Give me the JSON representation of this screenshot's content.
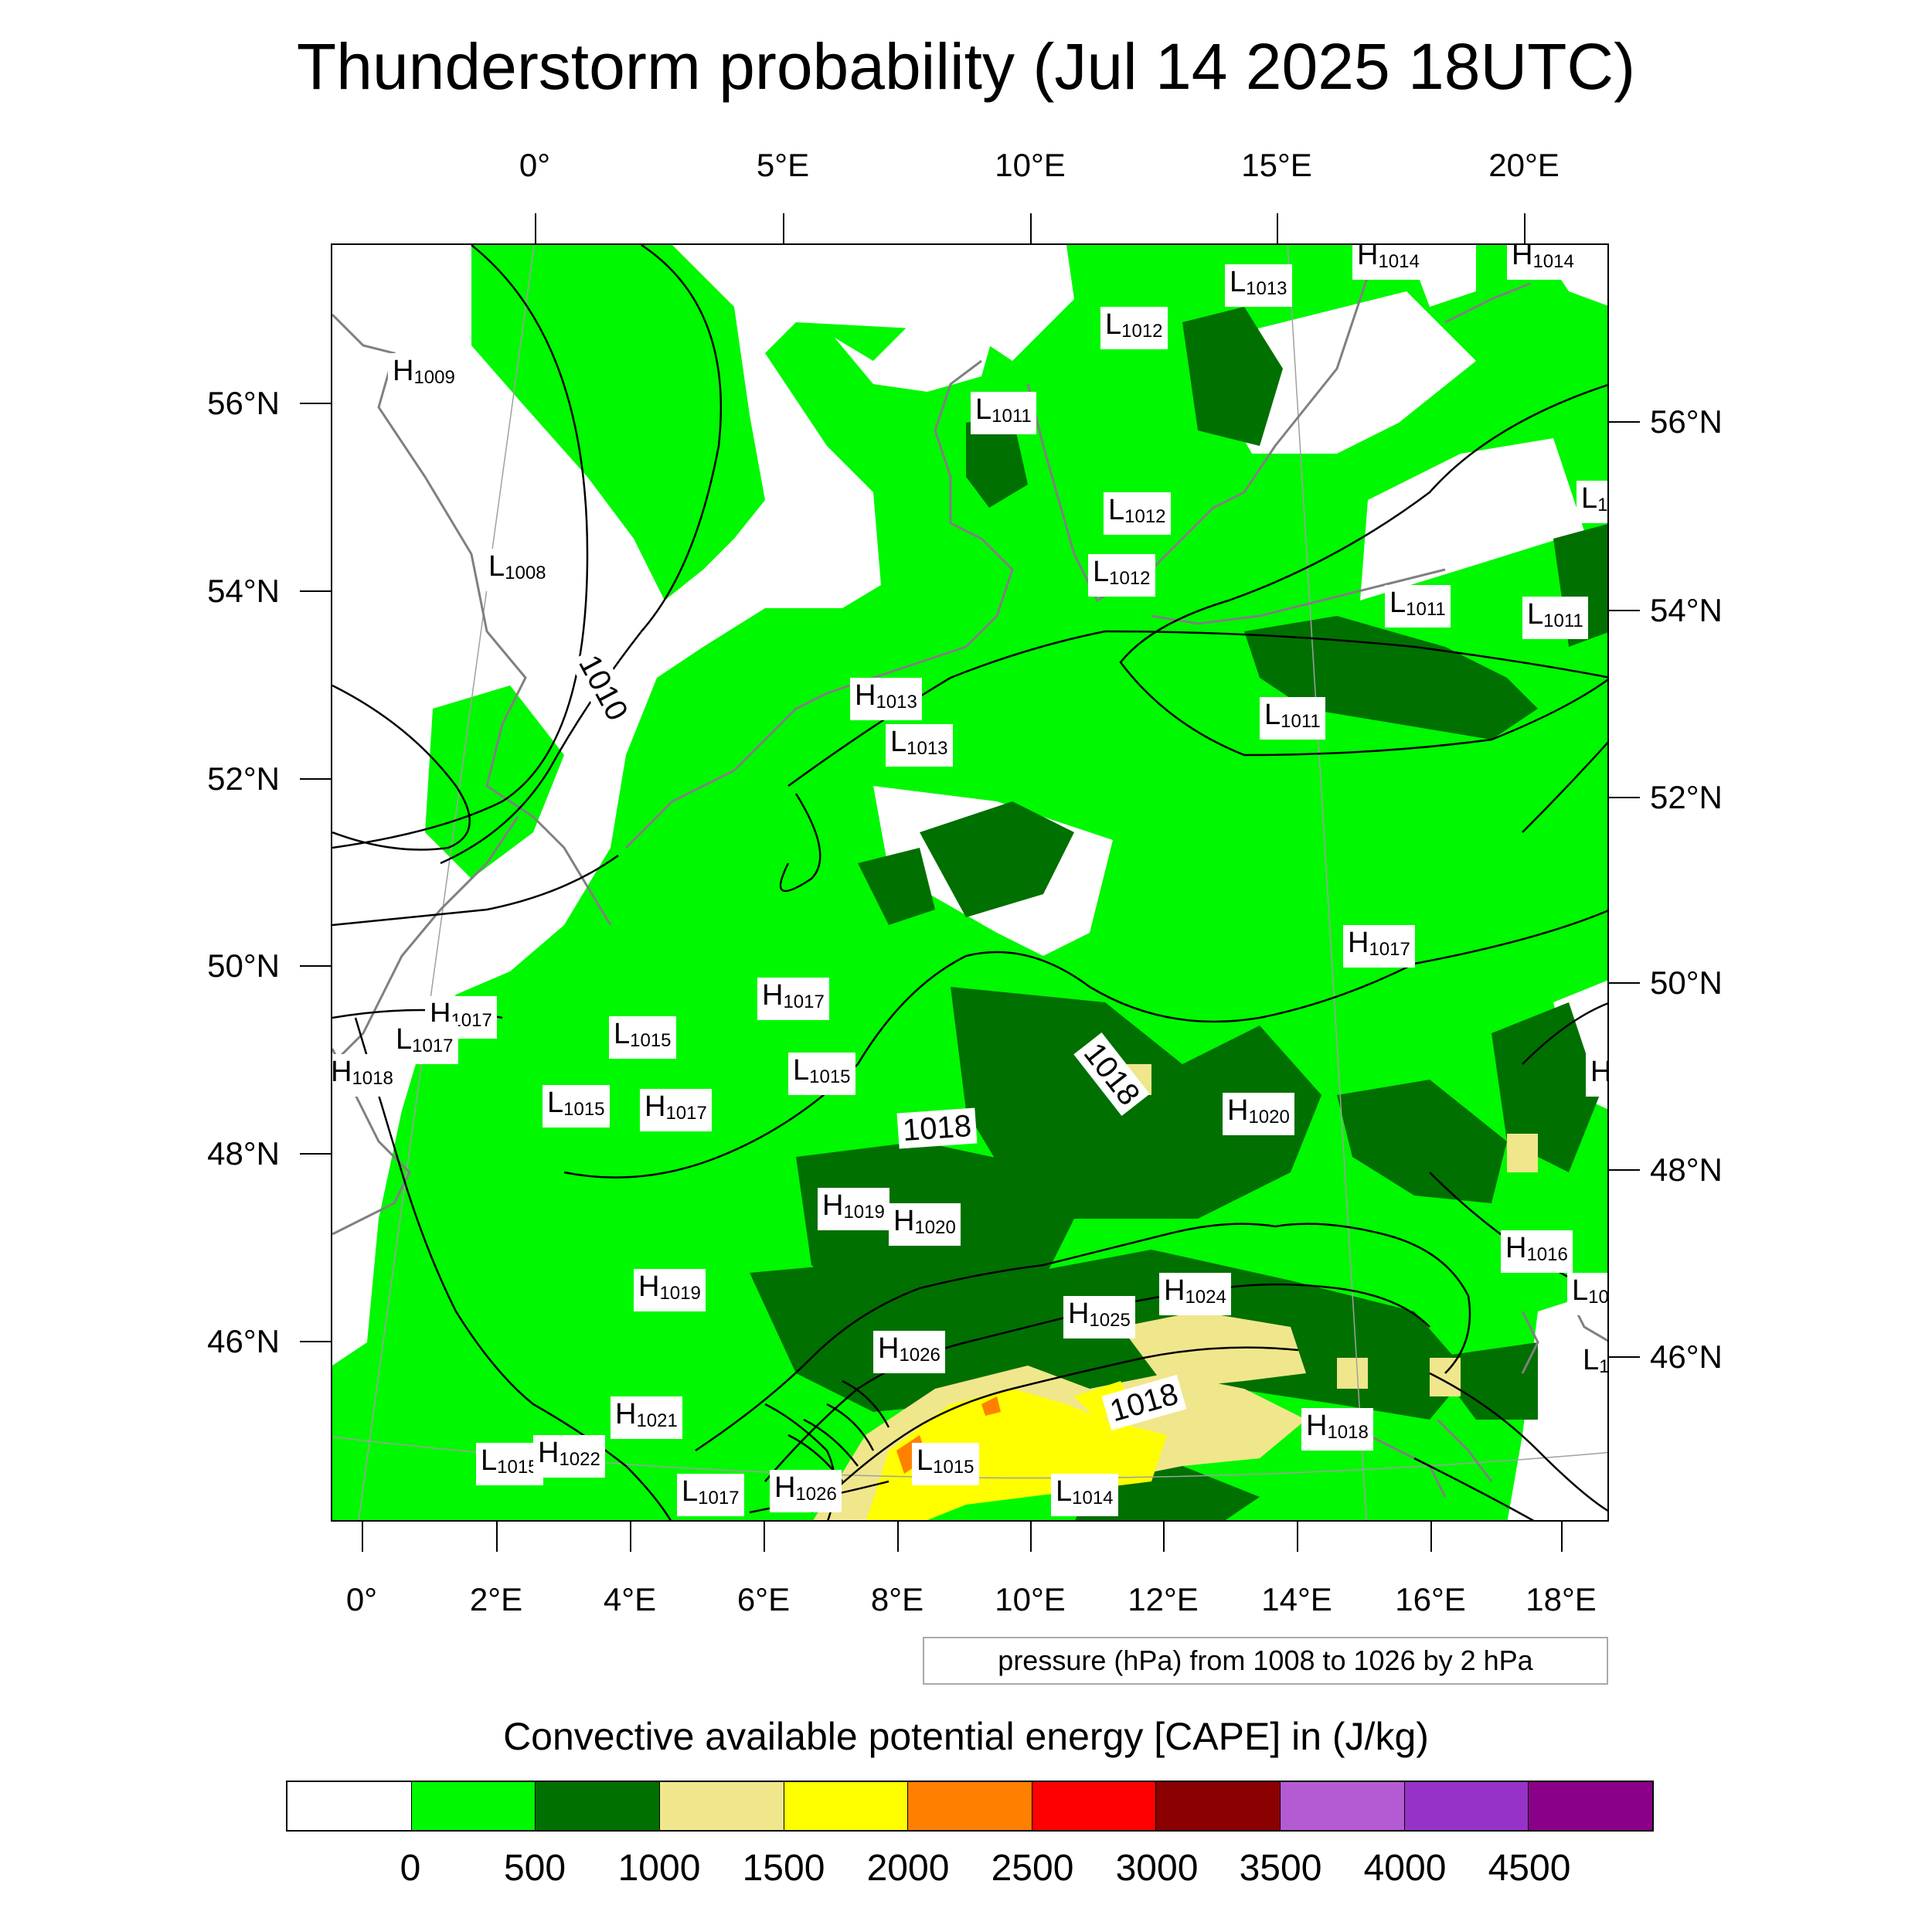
{
  "title": "Thunderstorm probability (Jul 14 2025 18UTC)",
  "top_lon_labels": [
    "0°",
    "5°E",
    "10°E",
    "15°E",
    "20°E"
  ],
  "bottom_lon_labels": [
    "0°",
    "2°E",
    "4°E",
    "6°E",
    "8°E",
    "10°E",
    "12°E",
    "14°E",
    "16°E",
    "18°E"
  ],
  "left_lat_labels": [
    "56°N",
    "54°N",
    "52°N",
    "50°N",
    "48°N",
    "46°N"
  ],
  "right_lat_labels": [
    "56°N",
    "54°N",
    "52°N",
    "50°N",
    "48°N",
    "46°N"
  ],
  "contour_note": "pressure (hPa) from 1008 to 1026 by 2 hPa",
  "legend": {
    "title": "Convective available potential energy [CAPE] in (J/kg)",
    "colors": [
      "#ffffff",
      "#00f800",
      "#007000",
      "#f0e68c",
      "#ffff00",
      "#ff8000",
      "#ff0000",
      "#8b0000",
      "#b45ad2",
      "#9632c8",
      "#8b0088"
    ],
    "labels": [
      "0",
      "500",
      "1000",
      "1500",
      "2000",
      "2500",
      "3000",
      "3500",
      "4000",
      "4500"
    ]
  },
  "pressure_systems": [
    {
      "type": "H",
      "value": "1009"
    },
    {
      "type": "L",
      "value": "1008"
    },
    {
      "type": "H",
      "value": "1014"
    },
    {
      "type": "H",
      "value": "1014"
    },
    {
      "type": "L",
      "value": "1013"
    },
    {
      "type": "L",
      "value": "1012"
    },
    {
      "type": "L",
      "value": "1011"
    },
    {
      "type": "L",
      "value": "1012"
    },
    {
      "type": "L",
      "value": "1012"
    },
    {
      "type": "L",
      "value": "1"
    },
    {
      "type": "L",
      "value": "1011"
    },
    {
      "type": "L",
      "value": "1011"
    },
    {
      "type": "H",
      "value": "1013"
    },
    {
      "type": "L",
      "value": "1013"
    },
    {
      "type": "L",
      "value": "1011"
    },
    {
      "type": "H",
      "value": "1017"
    },
    {
      "type": "H",
      "value": "1017"
    },
    {
      "type": "L",
      "value": "1017"
    },
    {
      "type": "H",
      "value": "1018"
    },
    {
      "type": "L",
      "value": "1015"
    },
    {
      "type": "H",
      "value": "1017"
    },
    {
      "type": "L",
      "value": "1015"
    },
    {
      "type": "L",
      "value": "1015"
    },
    {
      "type": "H",
      "value": "1017"
    },
    {
      "type": "H",
      "value": "1020"
    },
    {
      "type": "H",
      "value": ""
    },
    {
      "type": "H",
      "value": "1019"
    },
    {
      "type": "H",
      "value": "1020"
    },
    {
      "type": "H",
      "value": "1016"
    },
    {
      "type": "L",
      "value": "10"
    },
    {
      "type": "H",
      "value": "1019"
    },
    {
      "type": "H",
      "value": "1024"
    },
    {
      "type": "H",
      "value": "1025"
    },
    {
      "type": "H",
      "value": "1026"
    },
    {
      "type": "L",
      "value": "1"
    },
    {
      "type": "H",
      "value": "1021"
    },
    {
      "type": "H",
      "value": "1018"
    },
    {
      "type": "L",
      "value": "1015"
    },
    {
      "type": "H",
      "value": "1022"
    },
    {
      "type": "L",
      "value": "1015"
    },
    {
      "type": "L",
      "value": "1017"
    },
    {
      "type": "H",
      "value": "1026"
    },
    {
      "type": "L",
      "value": "1014"
    }
  ],
  "contour_labels": [
    "1010",
    "1018",
    "1018",
    "1018"
  ]
}
